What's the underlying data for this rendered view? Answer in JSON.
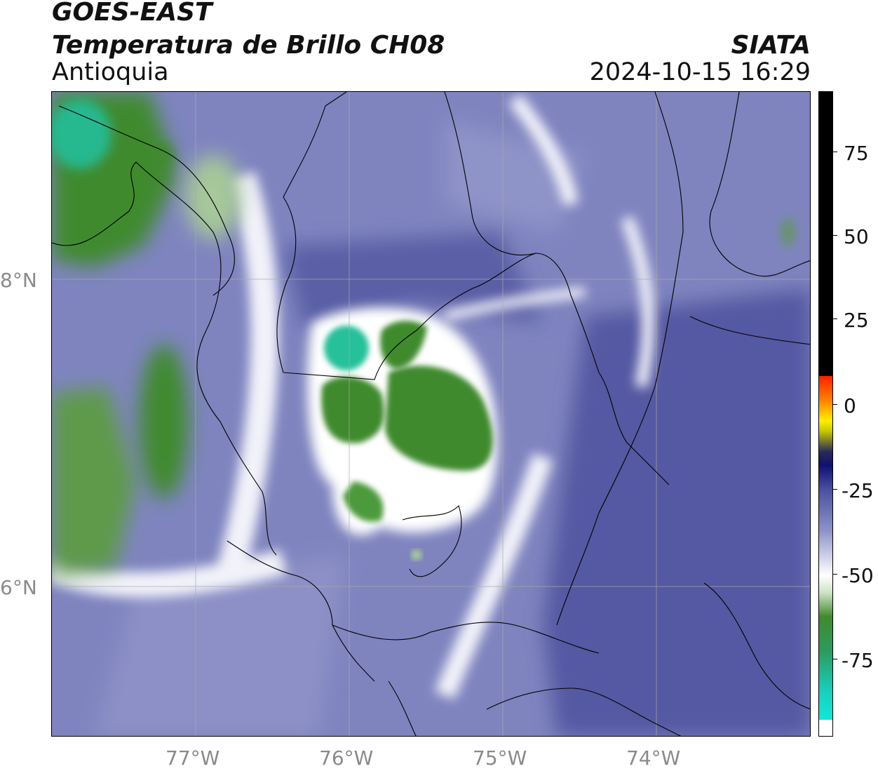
{
  "header": {
    "satellite": "GOES-EAST",
    "product": "Temperatura de Brillo CH08",
    "region": "Antioquia",
    "agency": "SIATA",
    "timestamp": "2024-10-15 16:29"
  },
  "map": {
    "lon_ticks": [
      "77°W",
      "76°W",
      "75°W",
      "74°W"
    ],
    "lat_ticks": [
      "8°N",
      "6°N"
    ],
    "lon_range": [
      -77.95,
      -73.0
    ],
    "lat_range": [
      5.05,
      9.25
    ],
    "gridlines": true
  },
  "colorbar": {
    "ticks": [
      "75",
      "50",
      "25",
      "0",
      "-25",
      "-50",
      "-75"
    ],
    "range": [
      -93,
      91
    ],
    "colors": {
      "hot": "#000000",
      "warm_start": "#ff2000",
      "yellow": "#ffee00",
      "navy": "#1a1a6a",
      "lavender": "#8d93c8",
      "white": "#ffffff",
      "green": "#3f8a2e",
      "cyan": "#10e8d8"
    }
  }
}
